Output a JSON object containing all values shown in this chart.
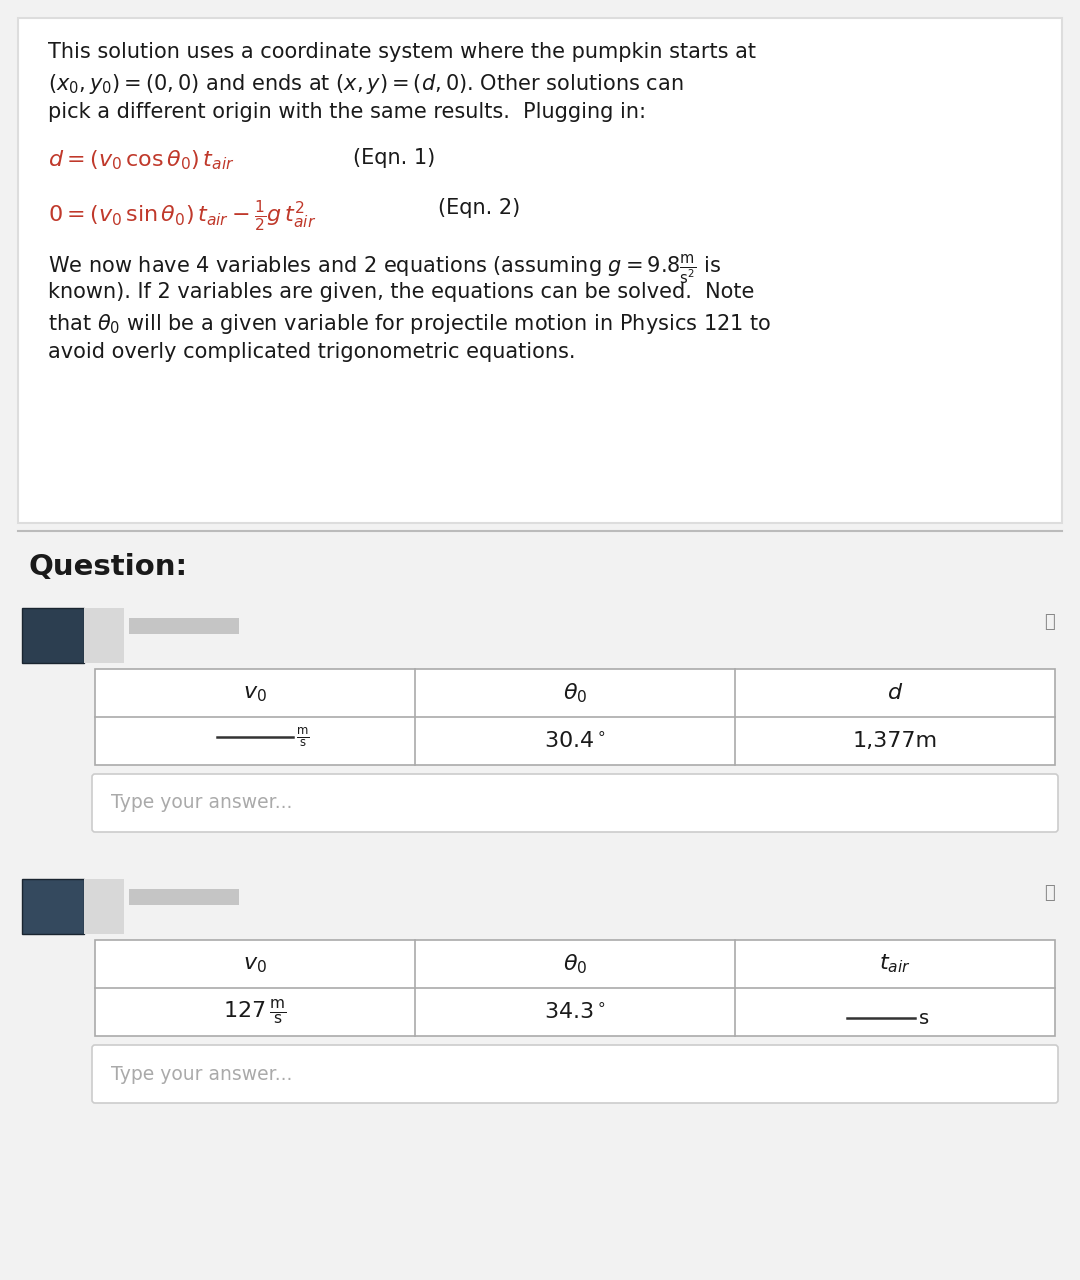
{
  "bg_color": "#f2f2f2",
  "white": "#ffffff",
  "text_color": "#1a1a1a",
  "red_color": "#c0392b",
  "border_color": "#cccccc",
  "dark_border": "#999999",
  "intro_lines": [
    "This solution uses a coordinate system where the pumpkin starts at",
    "$(x_0, y_0) = (0, 0)$ and ends at $(x, y) = (d, 0)$. Other solutions can",
    "pick a different origin with the same results.  Plugging in:"
  ],
  "eq1_red": "$d = (v_0\\,\\cos\\theta_0)\\,t_{air}$",
  "eq1_label": "(Eqn. 1)",
  "eq2_red": "$0 = (v_0\\,\\sin\\theta_0)\\,t_{air} - \\frac{1}{2}g\\,t^2_{air}$",
  "eq2_label": "(Eqn. 2)",
  "para_lines": [
    "We now have 4 variables and 2 equations (assuming $g = 9.8\\frac{\\mathrm{m}}{\\mathrm{s}^2}$ is",
    "known). If 2 variables are given, the equations can be solved.  Note",
    "that $\\theta_0$ will be a given variable for projectile motion in Physics 121 to",
    "avoid overly complicated trigonometric equations."
  ],
  "question_label": "Question:",
  "t1_headers": [
    "$v_0$",
    "$\\theta_0$",
    "$d$"
  ],
  "t1_vals_1": "$30.4^\\circ$",
  "t1_vals_2": "1,377m",
  "t2_headers": [
    "$v_0$",
    "$\\theta_0$",
    "$t_{air}$"
  ],
  "t2_vals_0": "$127\\,\\frac{\\mathrm{m}}{\\mathrm{s}}$",
  "t2_vals_1": "$34.3^\\circ$",
  "answer_placeholder": "Type your answer...",
  "avatar1_color": "#2c3e50",
  "avatar2_color": "#34495e"
}
